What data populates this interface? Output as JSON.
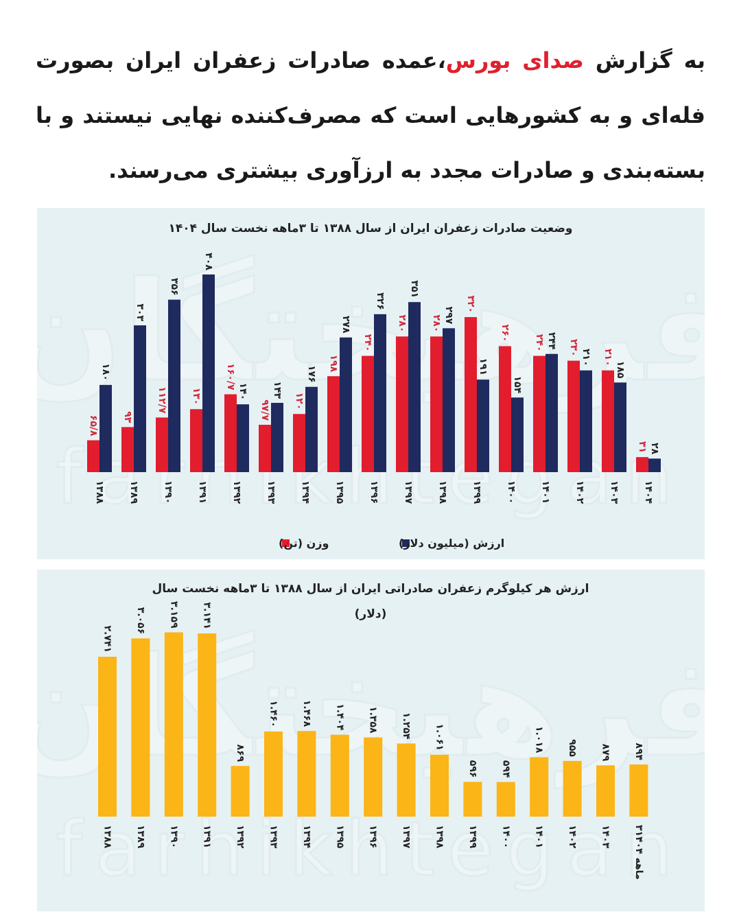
{
  "article": {
    "prefix": "به گزارش ",
    "source_link": "صدای بورس",
    "body": "،عمده صادرات زعفران ایران بصورت فله‌ای و به کشورهایی است که مصرف‌کننده نهایی نیستند و با بسته‌بندی و صادرات مجدد به ارزآوری بیشتری می‌رسند.",
    "link_color": "#e0202e"
  },
  "watermark": {
    "logo": "فرهیختگان",
    "latin": "farhikhtegan"
  },
  "chart_data": [
    {
      "type": "bar",
      "title": "وضعیت صادرات زعفران ایران از سال ۱۳۸۸ تا ۳ماهه نخست سال ۱۴۰۴",
      "categories": [
        "۱۳۸۸",
        "۱۳۸۹",
        "۱۳۹۰",
        "۱۳۹۱",
        "۱۳۹۲",
        "۱۳۹۳",
        "۱۳۹۴",
        "۱۳۹۵",
        "۱۳۹۶",
        "۱۳۹۷",
        "۱۳۹۸",
        "۱۳۹۹",
        "۱۴۰۰",
        "۱۴۰۱",
        "۱۴۰۲",
        "۱۴۰۳",
        "۱۴۰۴"
      ],
      "series": [
        {
          "name": "وزن (تن)",
          "color": "#e11d2e",
          "values": [
            65.8,
            93,
            112.7,
            130,
            160.7,
            97.7,
            120,
            198,
            240,
            280,
            280,
            320,
            260,
            240,
            230,
            210,
            31
          ],
          "labels": [
            "۶۵/۸",
            "۹۳",
            "۱۱۲/۷",
            "۱۳۰",
            "۱۶۰/۷",
            "۹۷/۷",
            "۱۲۰",
            "۱۹۸",
            "۲۴۰",
            "۲۸۰",
            "۲۸۰",
            "۳۲۰",
            "۲۶۰",
            "۲۴۰",
            "۲۳۰",
            "۲۱۰",
            "۳۱"
          ]
        },
        {
          "name": "ارزش (میلیون دلار)",
          "color": "#1f2a5e",
          "values": [
            180,
            303,
            356,
            408,
            140,
            143,
            176,
            278,
            326,
            351,
            297,
            191,
            154,
            244,
            210,
            185,
            28
          ],
          "labels": [
            "۱۸۰",
            "۳۰۳",
            "۳۵۶",
            "۴۰۸",
            "۱۴۰",
            "۱۴۳",
            "۱۷۶",
            "۲۷۸",
            "۳۲۶",
            "۳۵۱",
            "۲۹۷",
            "۱۹۱",
            "۱۵۴",
            "۲۴۴",
            "۲۱۰",
            "۱۸۵",
            "۲۸"
          ]
        }
      ],
      "legend": "bottom",
      "grid": false
    },
    {
      "type": "bar",
      "title": "ارزش هر کیلوگرم زعفران صادراتی ایران از سال ۱۳۸۸ تا ۳ماهه نخست سال",
      "subtitle": "(دلار)",
      "categories": [
        "۱۳۸۸",
        "۱۳۸۹",
        "۱۳۹۰",
        "۱۳۹۱",
        "۱۳۹۲",
        "۱۳۹۳",
        "۱۳۹۴",
        "۱۳۹۵",
        "۱۳۹۶",
        "۱۳۹۷",
        "۱۳۹۸",
        "۱۳۹۹",
        "۱۴۰۰",
        "۱۴۰۱",
        "۱۴۰۲",
        "۱۴۰۳",
        "۳ماهه ۱۴۰۴"
      ],
      "series": [
        {
          "color": "#fbb516",
          "values": [
            2741,
            3056,
            3159,
            3141,
            869,
            1460,
            1468,
            1404,
            1358,
            1254,
            1061,
            596,
            594,
            1018,
            955,
            879,
            894
          ],
          "labels": [
            "۲.۷۴۱",
            "۳.۰۵۶",
            "۳.۱۵۹",
            "۳.۱۴۱",
            "۸۶۹",
            "۱.۴۶۰",
            "۱.۴۶۸",
            "۱.۴۰۴",
            "۱.۳۵۸",
            "۱.۲۵۴",
            "۱.۰۶۱",
            "۵۹۶",
            "۵۹۴",
            "۱.۰۱۸",
            "۹۵۵",
            "۸۷۹",
            "۸۹۴"
          ]
        }
      ],
      "grid": false
    }
  ]
}
